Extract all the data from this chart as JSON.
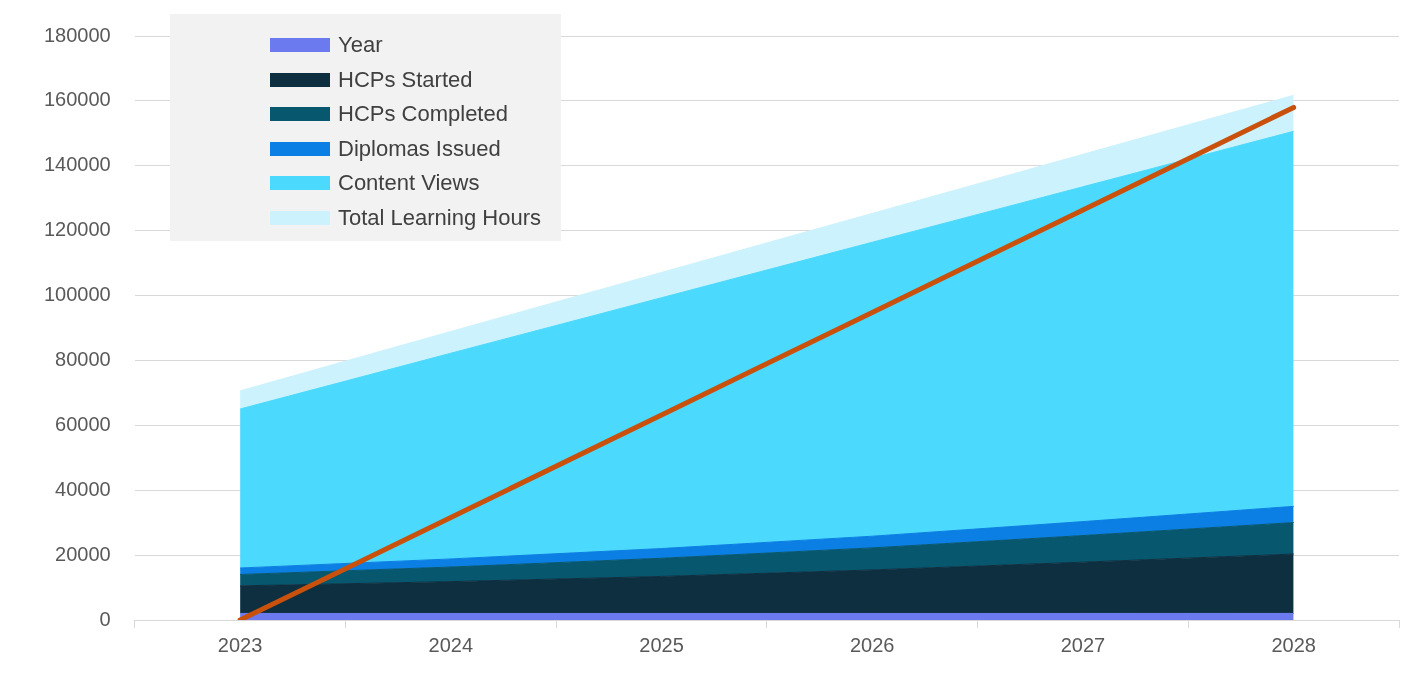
{
  "chart_data": {
    "type": "area",
    "stacked": true,
    "categories": [
      "2023",
      "2024",
      "2025",
      "2026",
      "2027",
      "2028"
    ],
    "series": [
      {
        "name": "Year",
        "color": "#6b7bef",
        "values": [
          2023,
          2024,
          2025,
          2026,
          2027,
          2028
        ]
      },
      {
        "name": "HCPs Started",
        "color": "#0e2f40",
        "values": [
          8500,
          9800,
          11400,
          13400,
          15800,
          18300
        ]
      },
      {
        "name": "HCPs Completed",
        "color": "#07576f",
        "values": [
          3500,
          4500,
          5600,
          6800,
          8200,
          9700
        ]
      },
      {
        "name": "Diplomas Issued",
        "color": "#0b7fe3",
        "values": [
          2000,
          2500,
          3000,
          3600,
          4300,
          5000
        ]
      },
      {
        "name": "Content Views",
        "color": "#4bd9fd",
        "values": [
          49000,
          63400,
          77300,
          90600,
          103200,
          115600
        ]
      },
      {
        "name": "Total Learning Hours",
        "color": "#ccf2fd",
        "values": [
          5600,
          6700,
          7800,
          8900,
          10000,
          11100
        ]
      },
      {
        "type": "line",
        "color": "#c9510c",
        "values": [
          0,
          31600,
          63200,
          94800,
          126400,
          158000
        ]
      }
    ],
    "ylim": [
      0,
      180000
    ],
    "yticks": [
      0,
      20000,
      40000,
      60000,
      80000,
      100000,
      120000,
      140000,
      160000,
      180000
    ],
    "grid": "y",
    "legend": "top left"
  }
}
